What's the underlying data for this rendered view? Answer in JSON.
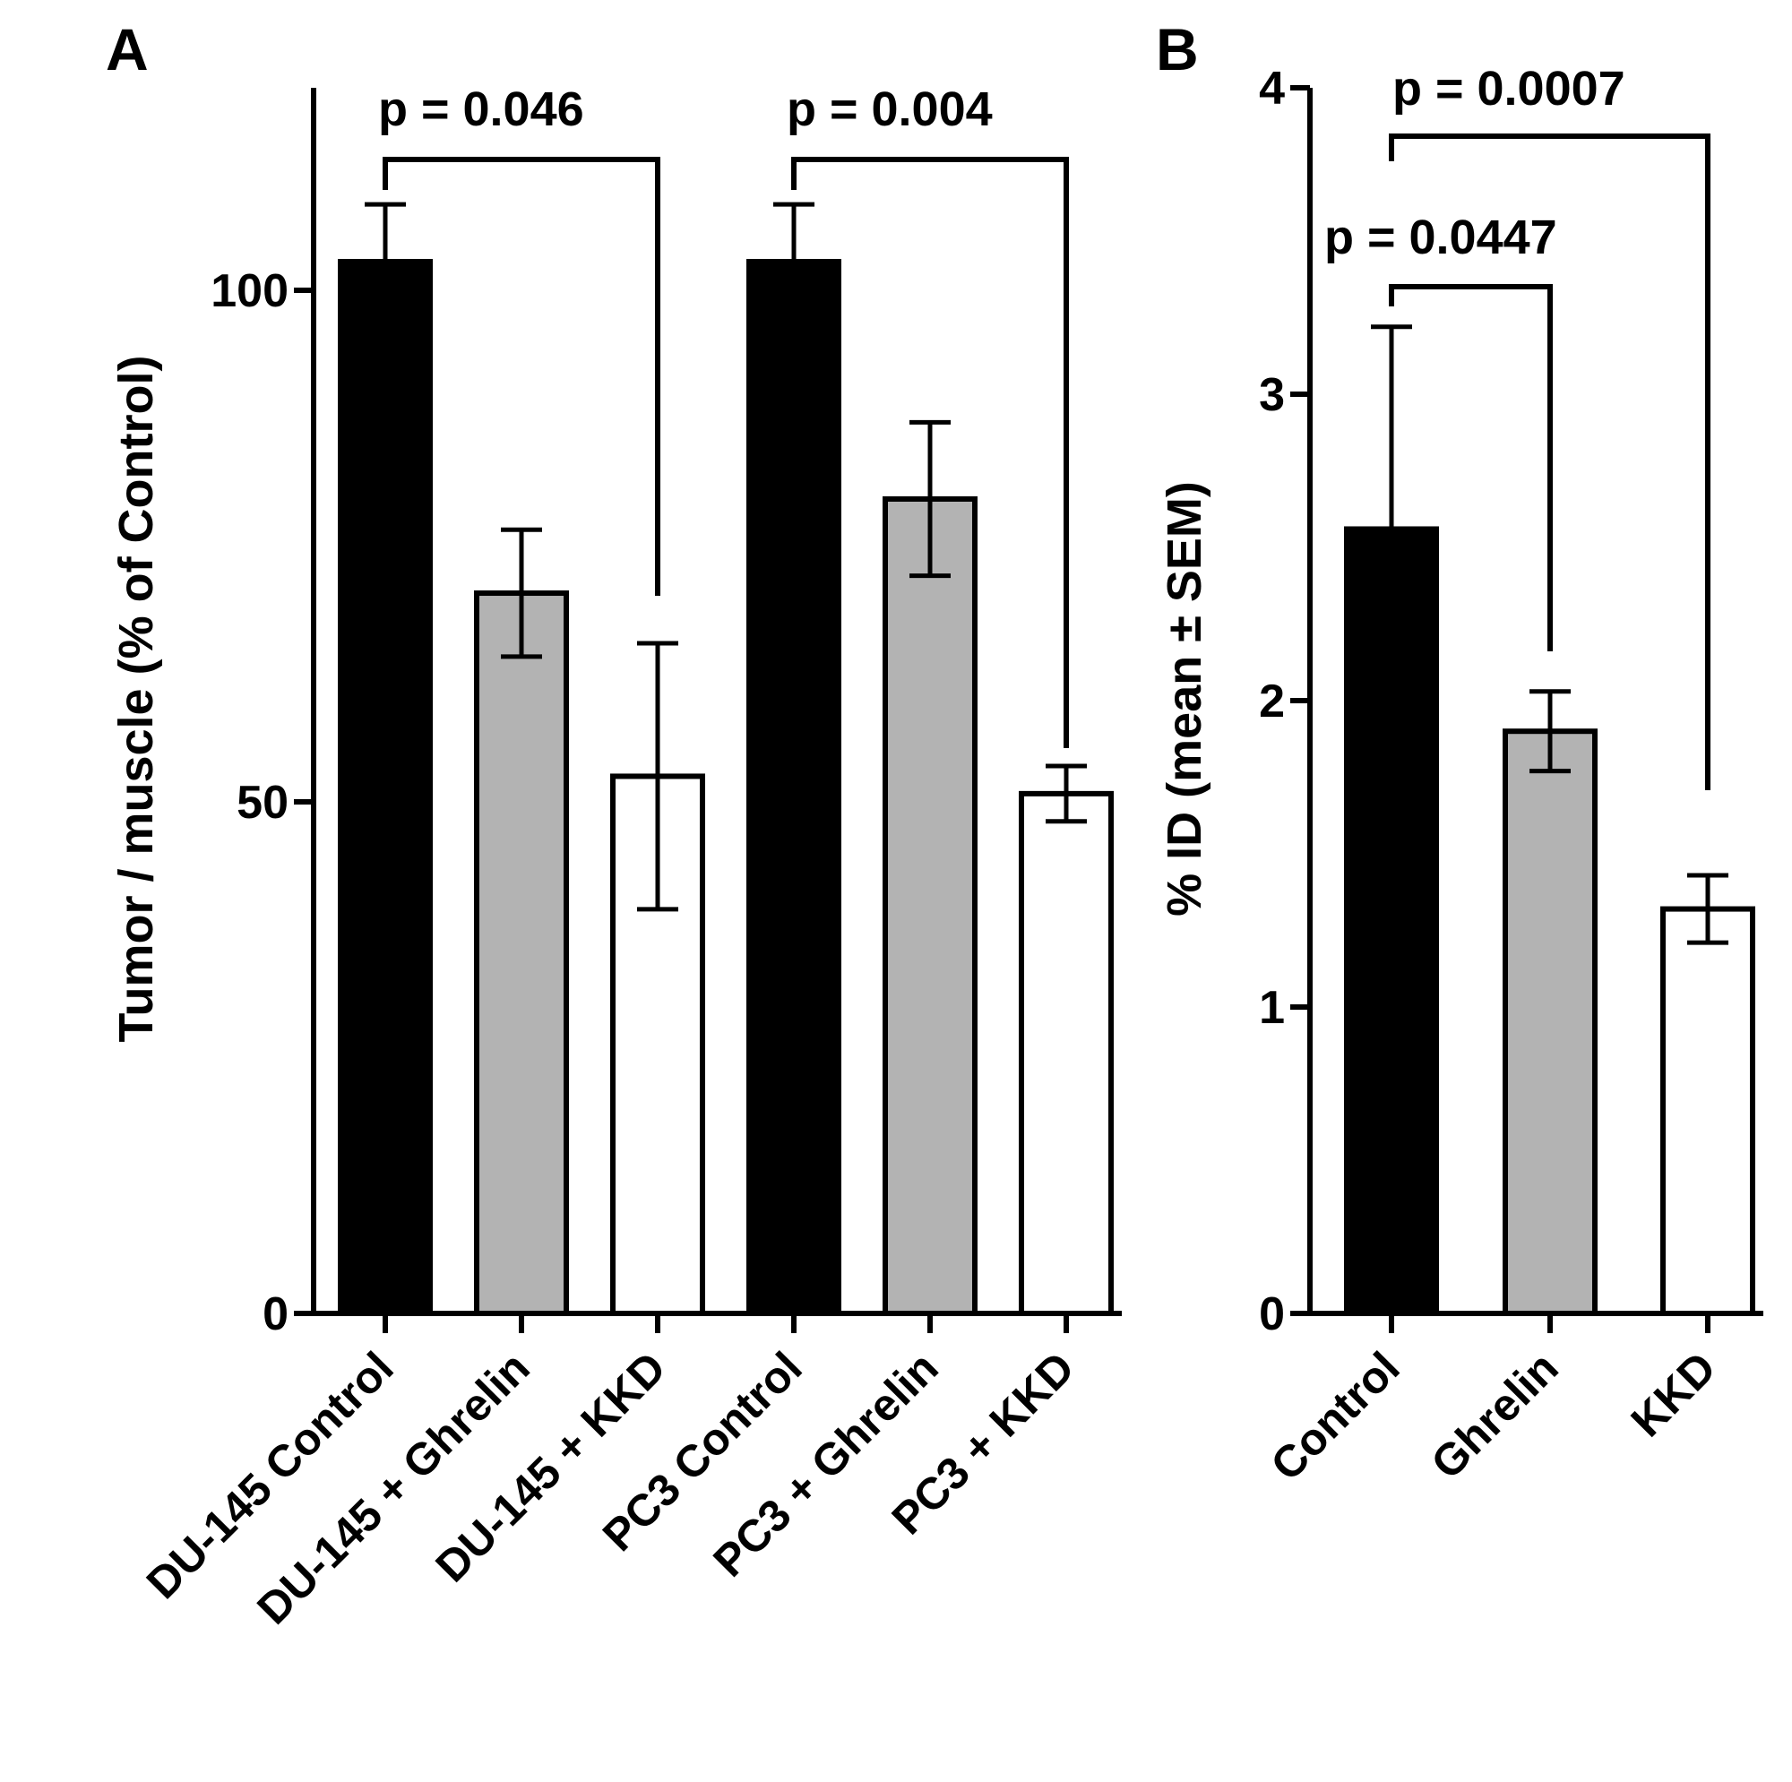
{
  "chart_data": [
    {
      "panel": "A",
      "type": "bar",
      "title": "",
      "xlabel": "",
      "ylabel": "Tumor / muscle (% of Control)",
      "ylim": [
        0,
        120
      ],
      "yticks": [
        0,
        50,
        100
      ],
      "grid": false,
      "categories": [
        "DU-145 Control",
        "DU-145 + Ghrelin",
        "DU-145 + KKD",
        "PC3 Control",
        "PC3 + Ghrelin",
        "PC3 + KKD"
      ],
      "values": [
        102.8,
        70.4,
        52.5,
        102.8,
        79.6,
        50.8
      ],
      "errors": [
        5.6,
        6.2,
        13.0,
        5.6,
        7.5,
        2.7
      ],
      "colors": [
        "#000000",
        "#b3b3b3",
        "#ffffff",
        "#000000",
        "#b3b3b3",
        "#ffffff"
      ],
      "comparisons": [
        {
          "from": 0,
          "to": 2,
          "label": "p = 0.046"
        },
        {
          "from": 3,
          "to": 5,
          "label": "p = 0.004"
        }
      ]
    },
    {
      "panel": "B",
      "type": "bar",
      "title": "",
      "xlabel": "",
      "ylabel": "% ID (mean ± SEM)",
      "ylim": [
        0,
        4
      ],
      "yticks": [
        0,
        1,
        2,
        3,
        4
      ],
      "grid": false,
      "categories": [
        "Control",
        "Ghrelin",
        "KKD"
      ],
      "values": [
        2.56,
        1.9,
        1.32
      ],
      "errors": [
        0.66,
        0.13,
        0.11
      ],
      "colors": [
        "#000000",
        "#b3b3b3",
        "#ffffff"
      ],
      "comparisons": [
        {
          "from": 0,
          "to": 1,
          "label": "p = 0.0447"
        },
        {
          "from": 0,
          "to": 2,
          "label": "p = 0.0007"
        }
      ]
    }
  ]
}
